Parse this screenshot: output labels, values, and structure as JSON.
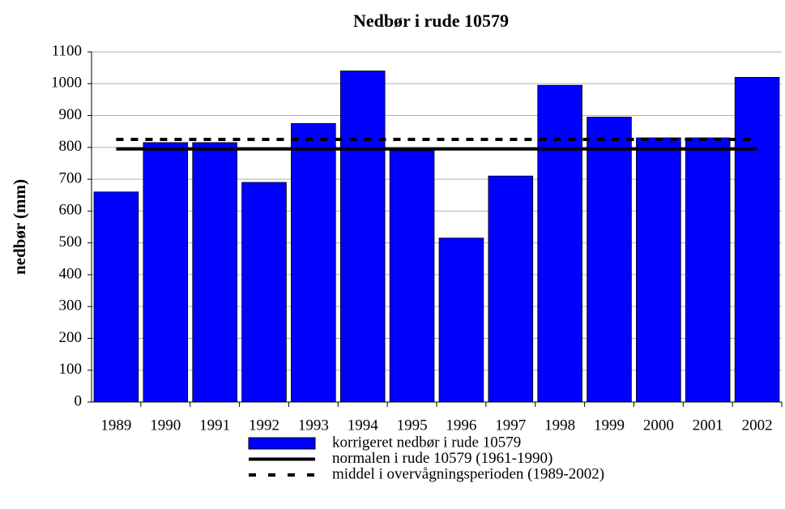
{
  "chart_data": {
    "type": "bar",
    "title": "Nedbør i rude 10579",
    "y_label": "nedbør (mm)",
    "categories": [
      "1989",
      "1990",
      "1991",
      "1992",
      "1993",
      "1994",
      "1995",
      "1996",
      "1997",
      "1998",
      "1999",
      "2000",
      "2001",
      "2002"
    ],
    "series": [
      {
        "name": "korrigeret nedbør i rude 10579",
        "type": "bar",
        "color": "#0000ff",
        "values": [
          660,
          815,
          815,
          690,
          875,
          1040,
          790,
          515,
          710,
          995,
          895,
          830,
          830,
          1020
        ]
      },
      {
        "name": "normalen i rude 10579 (1961-1990)",
        "type": "line",
        "dash": false,
        "color": "#000000",
        "values": [
          795,
          795,
          795,
          795,
          795,
          795,
          795,
          795,
          795,
          795,
          795,
          795,
          795,
          795
        ]
      },
      {
        "name": "middel i overvågningsperioden (1989-2002)",
        "type": "line",
        "dash": true,
        "color": "#000000",
        "values": [
          825,
          825,
          825,
          825,
          825,
          825,
          825,
          825,
          825,
          825,
          825,
          825,
          825,
          825
        ]
      }
    ],
    "ylim": [
      0,
      1100
    ],
    "yticks": [
      0,
      100,
      200,
      300,
      400,
      500,
      600,
      700,
      800,
      900,
      1000,
      1100
    ],
    "grid": true,
    "legend": "bottom"
  }
}
